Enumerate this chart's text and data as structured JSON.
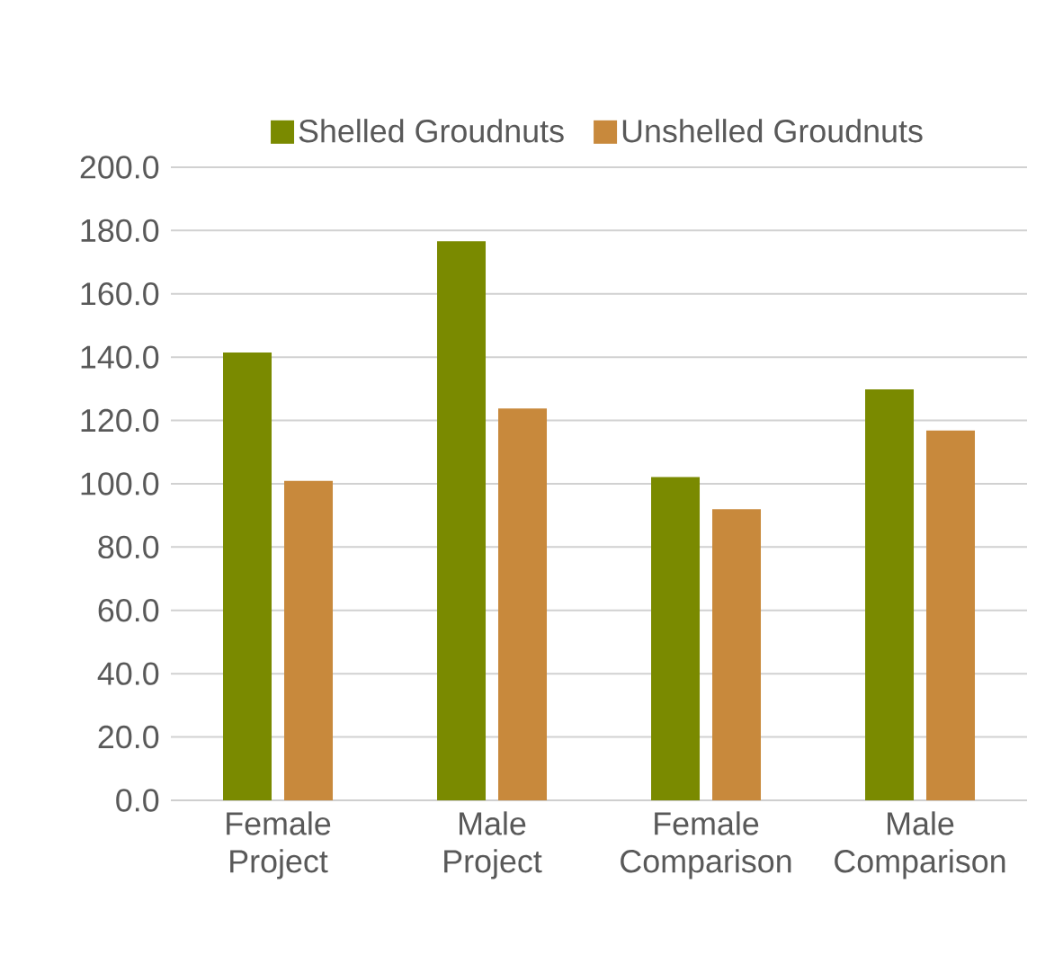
{
  "chart_data": {
    "type": "bar",
    "categories": [
      "Female Project",
      "Male Project",
      "Female Comparison",
      "Male Comparison"
    ],
    "series": [
      {
        "name": "Shelled Groudnuts",
        "color": "#7a8a00",
        "values": [
          141.5,
          176.6,
          102.1,
          129.8
        ]
      },
      {
        "name": "Unshelled Groudnuts",
        "color": "#c8893c",
        "values": [
          100.9,
          123.8,
          92.0,
          116.8
        ]
      }
    ],
    "ylim": [
      0,
      200
    ],
    "yticks": [
      {
        "value": 0,
        "label": "0.0"
      },
      {
        "value": 20,
        "label": "20.0"
      },
      {
        "value": 40,
        "label": "40.0"
      },
      {
        "value": 60,
        "label": "60.0"
      },
      {
        "value": 80,
        "label": "80.0"
      },
      {
        "value": 100,
        "label": "100.0"
      },
      {
        "value": 120,
        "label": "120.0"
      },
      {
        "value": 140,
        "label": "140.0"
      },
      {
        "value": 160,
        "label": "160.0"
      },
      {
        "value": 180,
        "label": "180.0"
      },
      {
        "value": 200,
        "label": "200.0"
      }
    ],
    "grid": "y",
    "legend": "top"
  }
}
